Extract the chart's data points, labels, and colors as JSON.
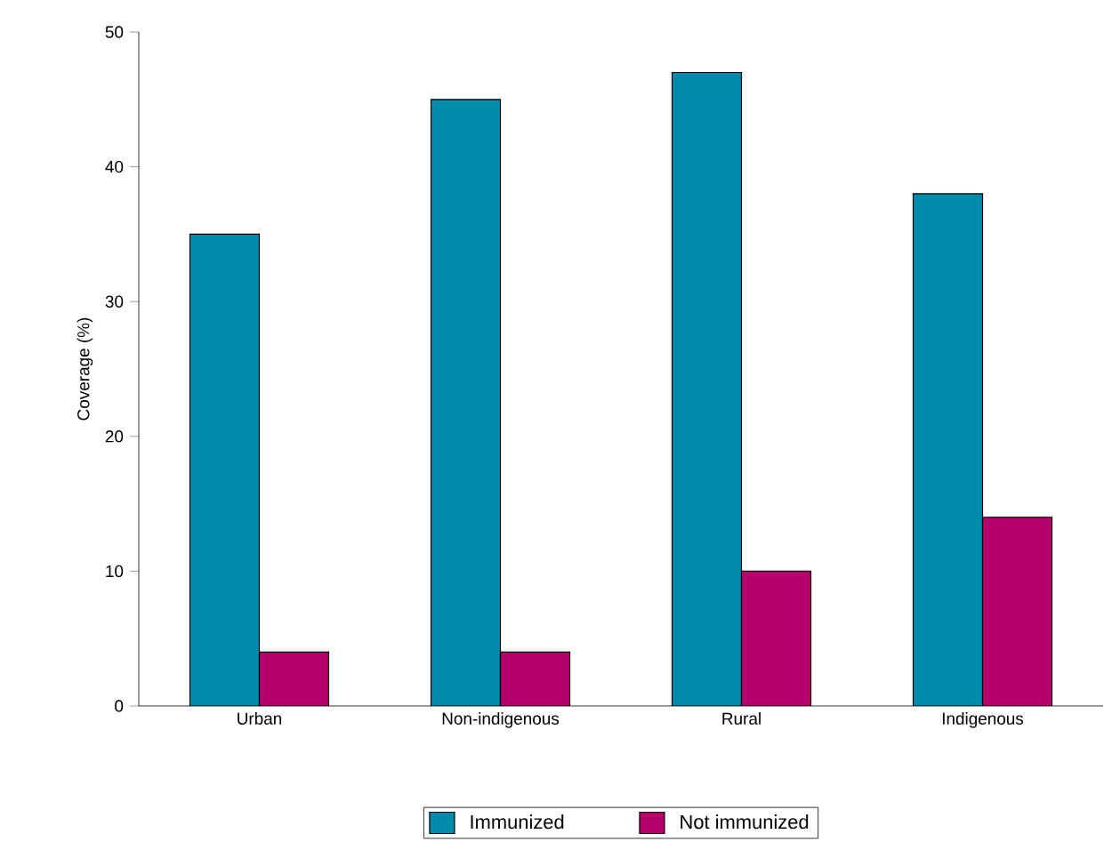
{
  "chart_data": {
    "type": "bar",
    "ylabel": "Coverage (%)",
    "categories": [
      "Urban",
      "Non-indigenous",
      "Rural",
      "Indigenous"
    ],
    "series": [
      {
        "name": "Immunized",
        "color": "#008aab",
        "values": [
          35,
          45,
          47,
          38
        ]
      },
      {
        "name": "Not immunized",
        "color": "#b5006b",
        "values": [
          4,
          4,
          10,
          14
        ]
      }
    ],
    "ylim": [
      0,
      50
    ],
    "yticks": [
      0,
      10,
      20,
      30,
      40,
      50
    ],
    "legend": "bottom"
  }
}
